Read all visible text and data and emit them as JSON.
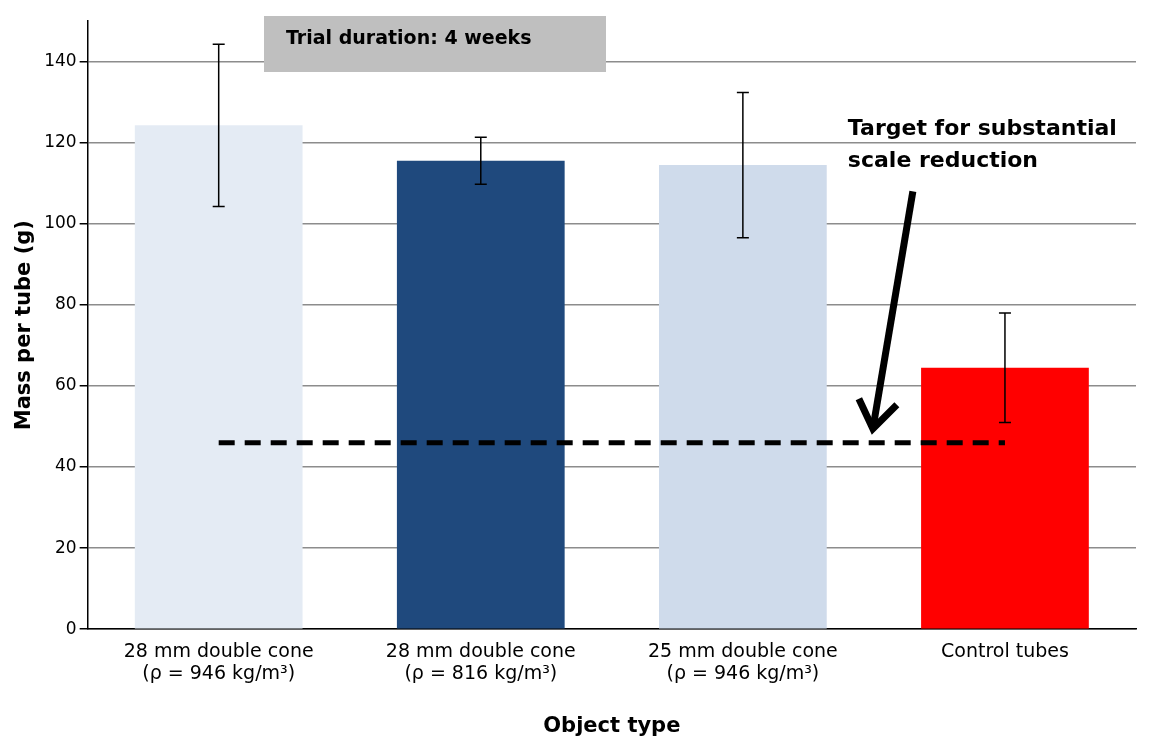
{
  "chart_data": {
    "type": "bar",
    "xlabel": "Object type",
    "ylabel": "Mass per tube (g)",
    "categories": [
      "28 mm double cone (ρ = 946 kg/m³)",
      "28 mm double cone (ρ = 816 kg/m³)",
      "25 mm double cone (ρ = 946 kg/m³)",
      "Control tubes"
    ],
    "values": [
      124.3,
      115.6,
      114.5,
      64.5
    ],
    "colors": [
      "#e4ebf4",
      "#1f497d",
      "#cfdbeb",
      "#ff0000"
    ],
    "errors": [
      20,
      5.8,
      17.9,
      13.5
    ],
    "ylim": [
      0,
      150
    ],
    "yticks": [
      0,
      20,
      40,
      60,
      80,
      100,
      120,
      140
    ],
    "grid": "y",
    "legend": false,
    "ref_lines": [
      {
        "axis": "y",
        "value": 46,
        "label": "Target for substantial scale reduction",
        "color": "#000000",
        "line_style": "dashed"
      }
    ],
    "annotations": [
      "Trial duration: 4 weeks"
    ]
  }
}
